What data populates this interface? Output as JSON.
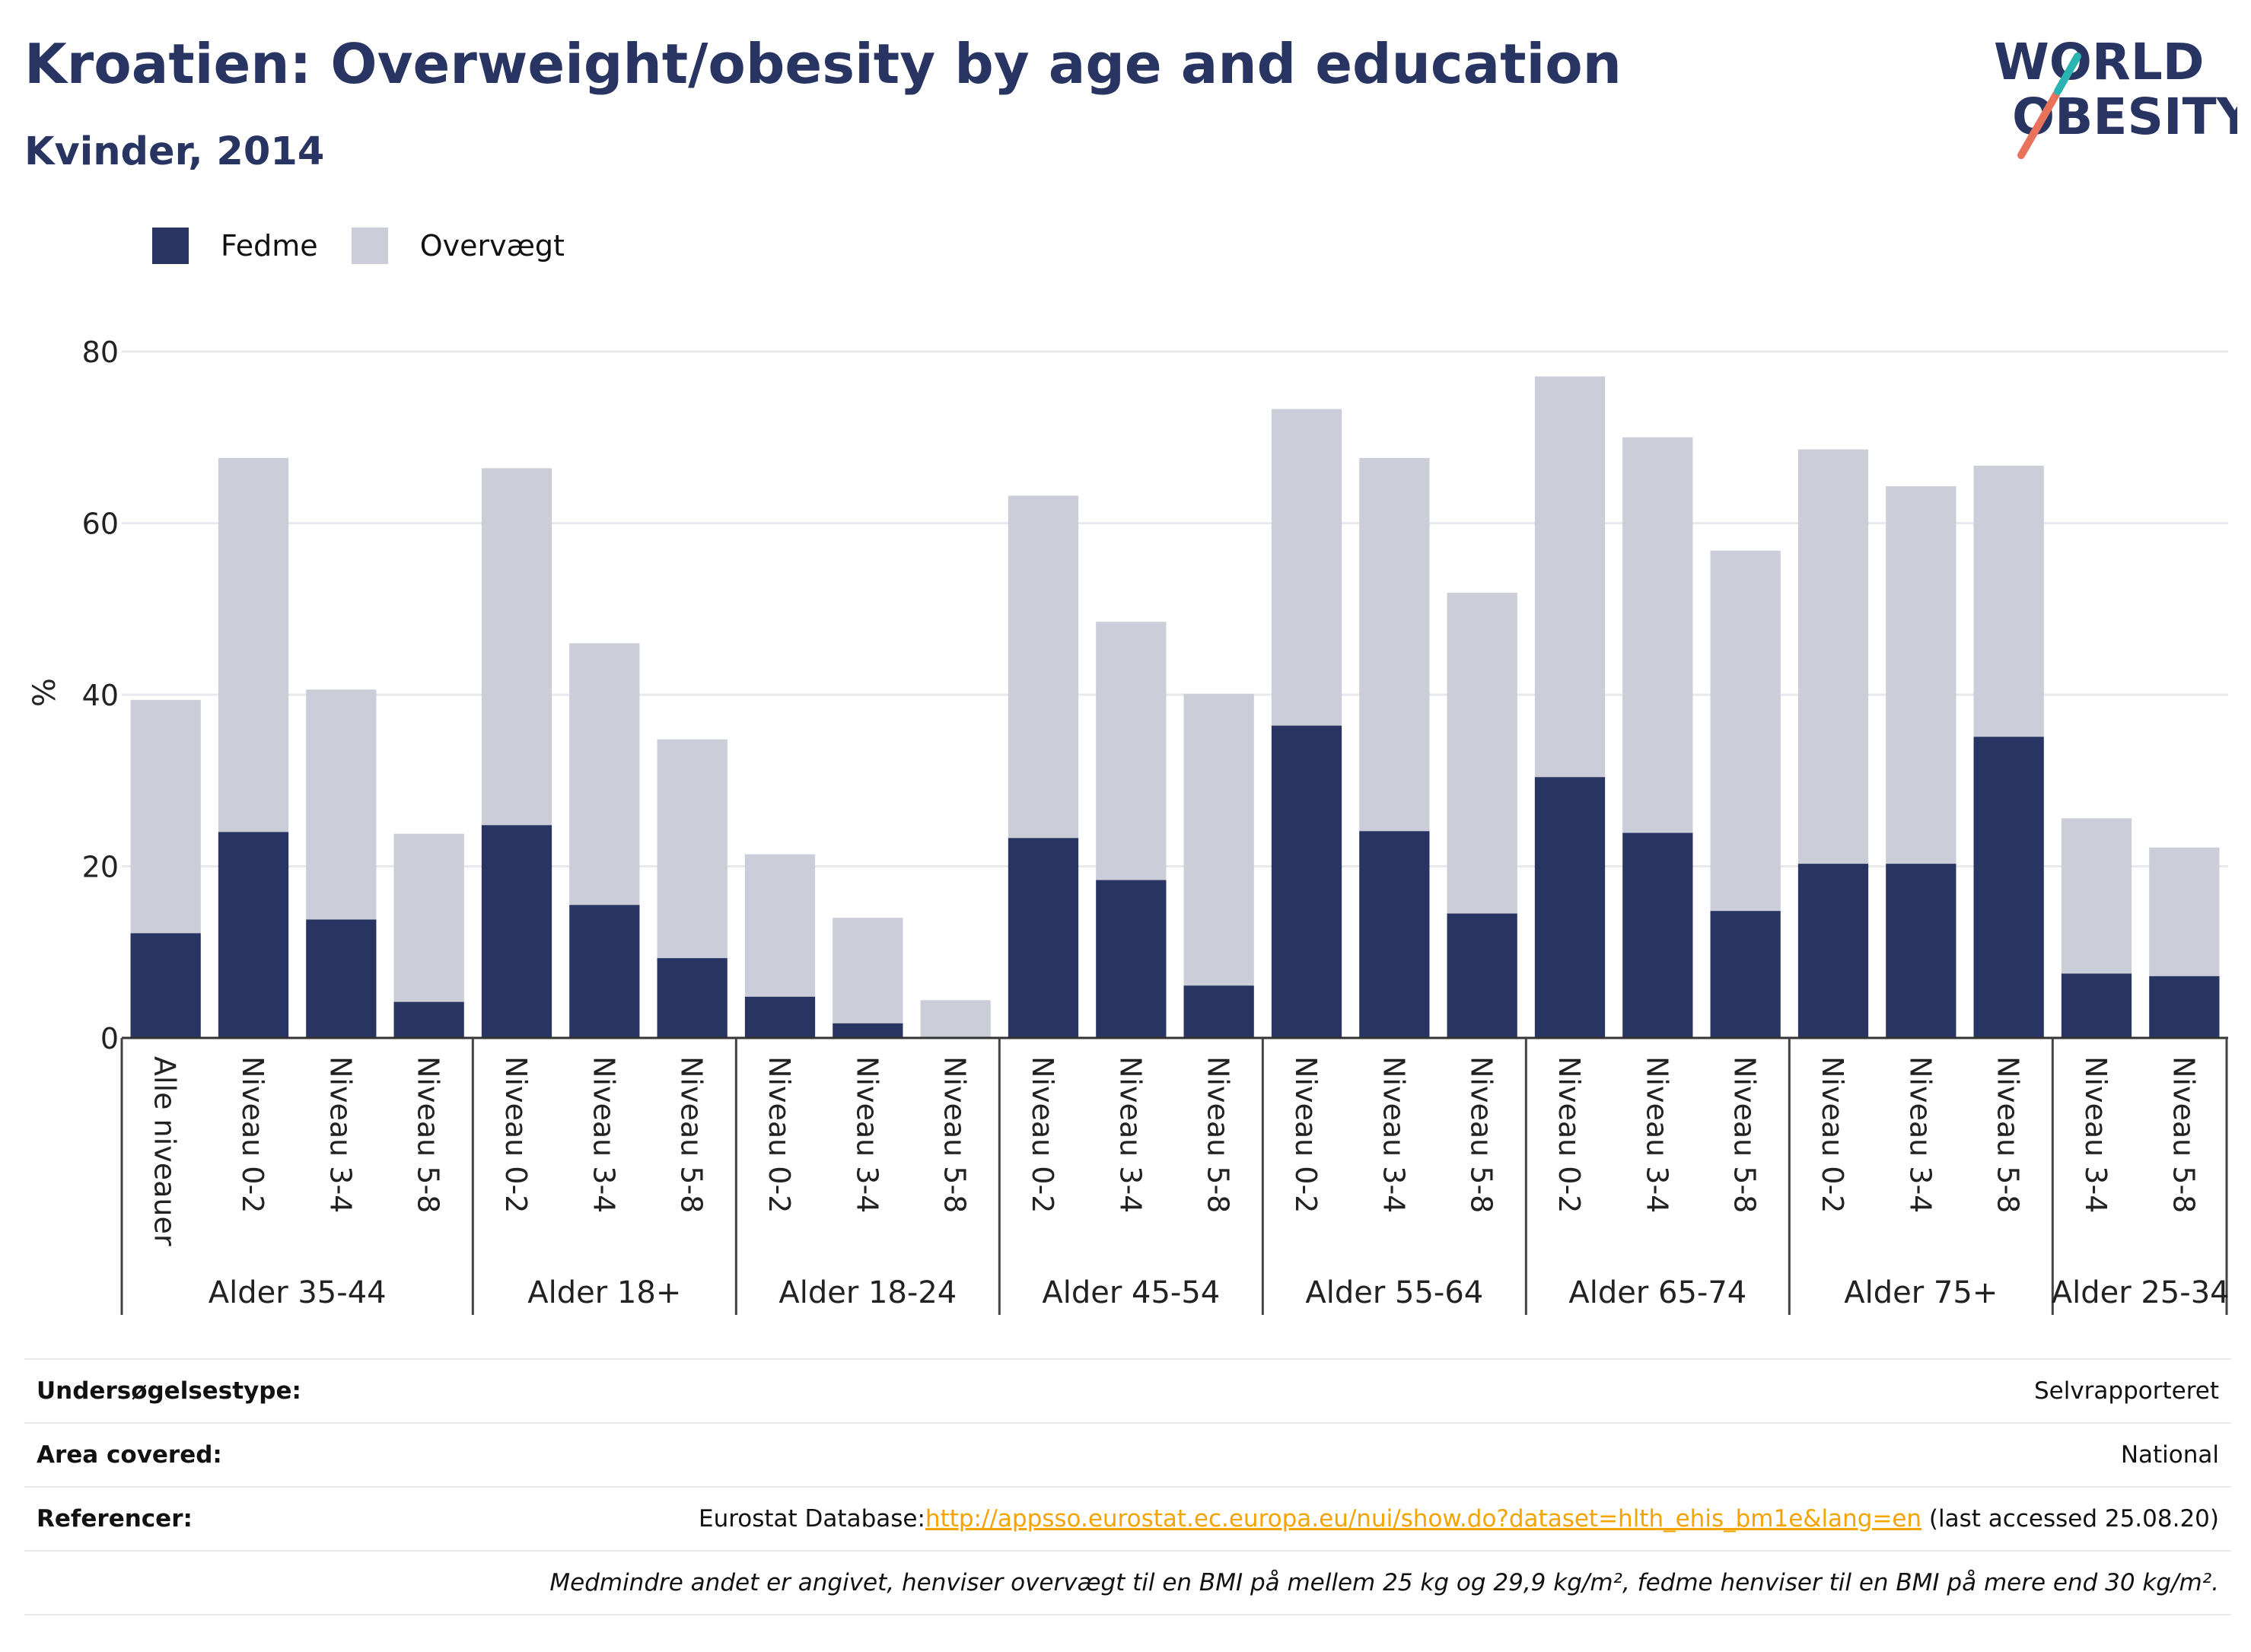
{
  "header": {
    "title": "Kroatien: Overweight/obesity by age and education",
    "subtitle": "Kvinder, 2014"
  },
  "logo": {
    "line1": "WORLD",
    "line2": "OBESITY",
    "colors": {
      "stripe_teal": "#2bb3b1",
      "stripe_coral": "#e8735a"
    }
  },
  "colors": {
    "fedme": "#283462",
    "overvaegt": "#cbcdd8",
    "title": "#283462",
    "link": "#f4a300"
  },
  "chart_data": {
    "type": "bar",
    "stacked": true,
    "ylabel": "%",
    "ylim": [
      0,
      80
    ],
    "yticks": [
      0,
      20,
      40,
      60,
      80
    ],
    "grid": true,
    "legend_position": "top-left",
    "legend": [
      "Fedme",
      "Overvægt"
    ],
    "groups": [
      {
        "name": "Alder 35-44",
        "categories": [
          "Alle niveauer",
          "Niveau 0-2",
          "Niveau 3-4",
          "Niveau 5-8"
        ]
      },
      {
        "name": "Alder 18+",
        "categories": [
          "Niveau 0-2",
          "Niveau 3-4",
          "Niveau 5-8"
        ]
      },
      {
        "name": "Alder 18-24",
        "categories": [
          "Niveau 0-2",
          "Niveau 3-4",
          "Niveau 5-8"
        ]
      },
      {
        "name": "Alder 45-54",
        "categories": [
          "Niveau 0-2",
          "Niveau 3-4",
          "Niveau 5-8"
        ]
      },
      {
        "name": "Alder 55-64",
        "categories": [
          "Niveau 0-2",
          "Niveau 3-4",
          "Niveau 5-8"
        ]
      },
      {
        "name": "Alder 65-74",
        "categories": [
          "Niveau 0-2",
          "Niveau 3-4",
          "Niveau 5-8"
        ]
      },
      {
        "name": "Alder 75+",
        "categories": [
          "Niveau 0-2",
          "Niveau 3-4",
          "Niveau 5-8"
        ]
      },
      {
        "name": "Alder 25-34",
        "categories": [
          "Niveau 3-4",
          "Niveau 5-8"
        ]
      }
    ],
    "series": [
      {
        "name": "Fedme",
        "values": [
          12.2,
          24.0,
          13.8,
          4.2,
          24.8,
          15.5,
          9.3,
          4.8,
          1.7,
          0,
          23.3,
          18.4,
          6.1,
          36.4,
          24.1,
          14.5,
          30.4,
          23.9,
          14.8,
          20.3,
          20.3,
          35.1,
          7.5,
          7.2
        ]
      },
      {
        "name": "Overvægt",
        "values": [
          27.2,
          43.6,
          26.8,
          19.6,
          41.6,
          30.5,
          25.5,
          16.6,
          12.3,
          4.4,
          39.9,
          30.1,
          34.0,
          36.9,
          43.5,
          37.4,
          46.7,
          46.1,
          42.0,
          48.3,
          44.0,
          31.6,
          18.1,
          15.0
        ]
      }
    ]
  },
  "info": {
    "survey_label": "Undersøgelsestype:",
    "survey_value": "Selvrapporteret",
    "area_label": "Area covered:",
    "area_value": "National",
    "ref_label": "Referencer:",
    "ref_prefix": "Eurostat Database:",
    "ref_link": "http://appsso.eurostat.ec.europa.eu/nui/show.do?dataset=hlth_ehis_bm1e&lang=en",
    "ref_suffix": " (last accessed 25.08.20)",
    "note": "Medmindre andet er angivet, henviser overvægt til en BMI på mellem 25 kg og 29,9 kg/m², fedme henviser til en BMI på mere end 30 kg/m²."
  }
}
